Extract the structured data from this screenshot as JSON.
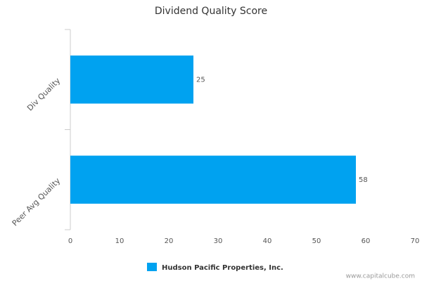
{
  "chart_data": {
    "type": "bar",
    "orientation": "horizontal",
    "title": "Dividend Quality Score",
    "categories": [
      "Div Quality",
      "Peer Avg Quality"
    ],
    "series": [
      {
        "name": "Hudson Pacific Properties, Inc.",
        "color": "#00a2f0",
        "values": [
          25,
          58
        ]
      }
    ],
    "xlim": [
      0,
      70
    ],
    "xticks": [
      0,
      10,
      20,
      30,
      40,
      50,
      60,
      70
    ],
    "grid": false,
    "credit": "www.capitalcube.com"
  }
}
